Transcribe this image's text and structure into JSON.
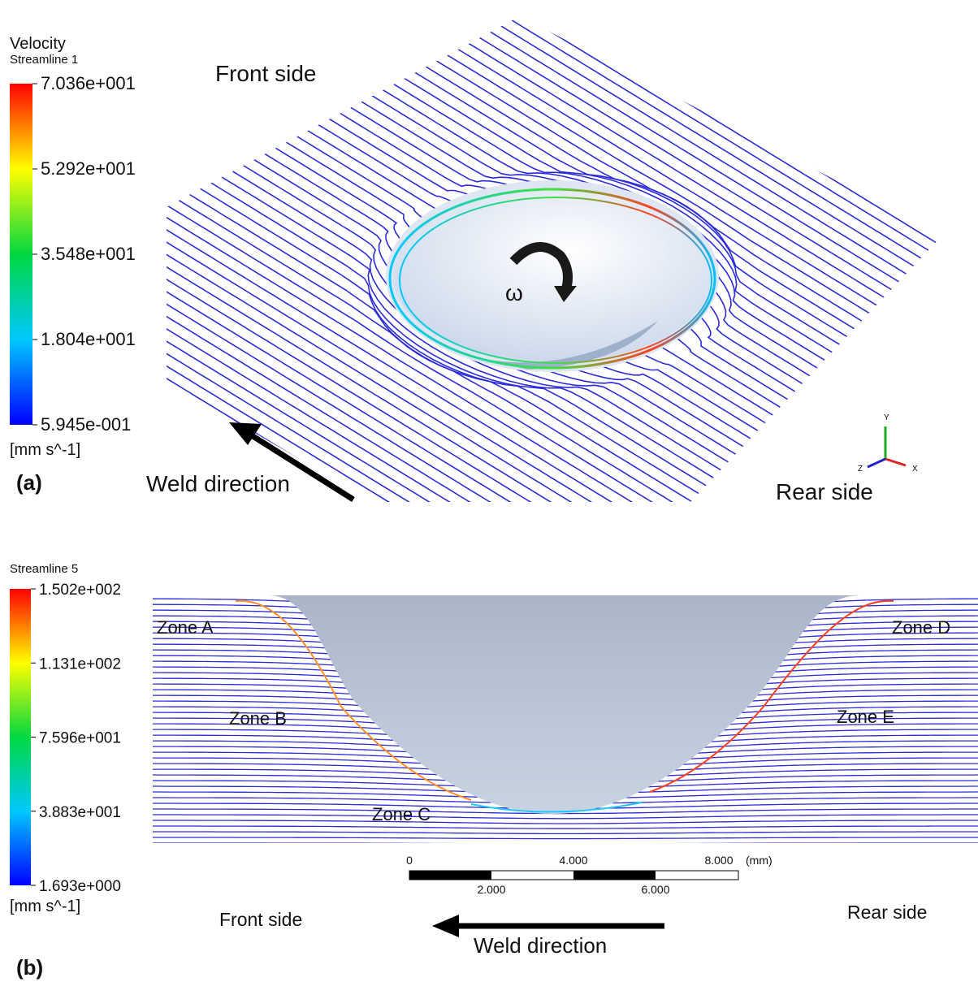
{
  "panel_a": {
    "label": "(a)",
    "legend": {
      "title": "Velocity",
      "subtitle": "Streamline 1",
      "ticks": [
        "7.036e+001",
        "5.292e+001",
        "3.548e+001",
        "1.804e+001",
        "5.945e-001"
      ],
      "unit": "[mm s^-1]"
    },
    "front_label": "Front side",
    "rear_label": "Rear side",
    "weld_direction": "Weld direction",
    "rotation": "ω",
    "axes": [
      "Y",
      "Z",
      "X"
    ]
  },
  "panel_b": {
    "label": "(b)",
    "legend": {
      "subtitle": "Streamline 5",
      "ticks": [
        "1.502e+002",
        "1.131e+002",
        "7.596e+001",
        "3.883e+001",
        "1.693e+000"
      ],
      "unit": "[mm s^-1]"
    },
    "zones": [
      "Zone A",
      "Zone B",
      "Zone C",
      "Zone D",
      "Zone E"
    ],
    "scale_bar": {
      "top_labels": [
        "0",
        "4.000",
        "8.000"
      ],
      "unit": "(mm)",
      "bottom_labels": [
        "2.000",
        "6.000"
      ]
    },
    "front_label": "Front side",
    "rear_label": "Rear side",
    "weld_direction": "Weld direction"
  }
}
